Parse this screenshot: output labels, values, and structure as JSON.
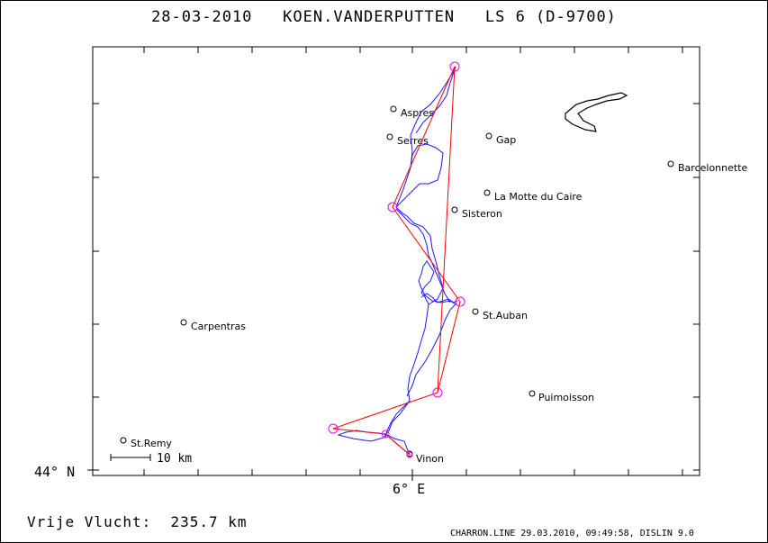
{
  "title": {
    "date": "28-03-2010",
    "pilot": "KOEN.VANDERPUTTEN",
    "glider": "LS 6 (D-9700)"
  },
  "axes": {
    "lat_label": "44° N",
    "lon_label": "6° E"
  },
  "towns": [
    {
      "name": "Aspres"
    },
    {
      "name": "Serres"
    },
    {
      "name": "Gap"
    },
    {
      "name": "Barcelonnette"
    },
    {
      "name": "La Motte du Caire"
    },
    {
      "name": "Sisteron"
    },
    {
      "name": "St.Auban"
    },
    {
      "name": "Carpentras"
    },
    {
      "name": "Puimoisson"
    },
    {
      "name": "St.Remy"
    },
    {
      "name": "Vinon"
    }
  ],
  "scale": {
    "label": "10 km"
  },
  "footer": {
    "distance_label": "Vrije Vlucht:",
    "distance_value": "235.7 km",
    "software": "CHARRON.LINE 29.03.2010, 09:49:58, DISLIN 9.0"
  },
  "colors": {
    "track": "#1a1aff",
    "task": "#ff0000",
    "turnpoint": "#ff00ff",
    "lake": "#000000"
  }
}
